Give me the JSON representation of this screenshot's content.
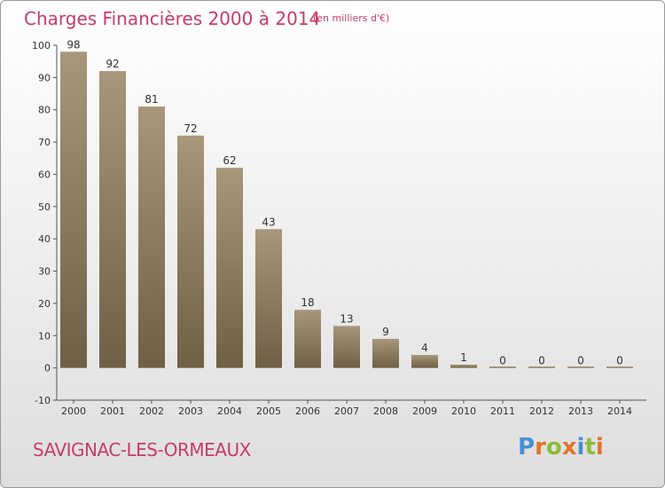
{
  "header": {
    "title": "Charges Financières 2000 à 2014",
    "unit": "(en milliers d'€)"
  },
  "footer": {
    "commune": "SAVIGNAC-LES-ORMEAUX",
    "logo": "Proxiti"
  },
  "colors": {
    "title": "#c83a6a",
    "bar_top": "#a8977a",
    "bar_bottom": "#6f5f44",
    "logo_letters": [
      "#4a8fd4",
      "#e0742a",
      "#8bbd3a",
      "#e0742a",
      "#4a8fd4",
      "#8bbd3a",
      "#e0742a"
    ]
  },
  "chart_data": {
    "type": "bar",
    "categories": [
      "2000",
      "2001",
      "2002",
      "2003",
      "2004",
      "2005",
      "2006",
      "2007",
      "2008",
      "2009",
      "2010",
      "2011",
      "2012",
      "2013",
      "2014"
    ],
    "values": [
      98,
      92,
      81,
      72,
      62,
      43,
      18,
      13,
      9,
      4,
      1,
      0,
      0,
      0,
      0
    ],
    "title": "Charges Financières 2000 à 2014",
    "ylabel": "(en milliers d'€)",
    "ylim": [
      -10,
      100
    ],
    "yticks": [
      -10,
      0,
      10,
      20,
      30,
      40,
      50,
      60,
      70,
      80,
      90,
      100
    ],
    "grid": false,
    "data_labels": true
  }
}
